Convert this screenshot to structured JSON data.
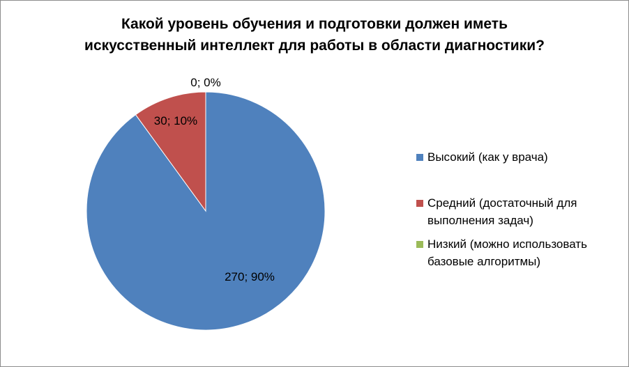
{
  "chart_data": {
    "type": "pie",
    "title_lines": [
      "Какой уровень обучения и подготовки должен иметь",
      "искусственный интеллект для работы в области диагностики?"
    ],
    "slices": [
      {
        "name": "Высокий (как у врача)",
        "value": 270,
        "percent": 90,
        "color": "#4F81BD",
        "label": "270; 90%",
        "legend_lines": [
          "Высокий (как у врача)"
        ]
      },
      {
        "name": "Средний (достаточный для выполнения задач)",
        "value": 30,
        "percent": 10,
        "color": "#C0504D",
        "label": "30; 10%",
        "legend_lines": [
          "Средний (достаточный для",
          "выполнения задач)"
        ]
      },
      {
        "name": "Низкий (можно использовать базовые алгоритмы)",
        "value": 0,
        "percent": 0,
        "color": "#9BBB59",
        "label": "0; 0%",
        "legend_lines": [
          "Низкий (можно использовать",
          "базовые алгоритмы)"
        ]
      }
    ],
    "legend_position": "right"
  }
}
